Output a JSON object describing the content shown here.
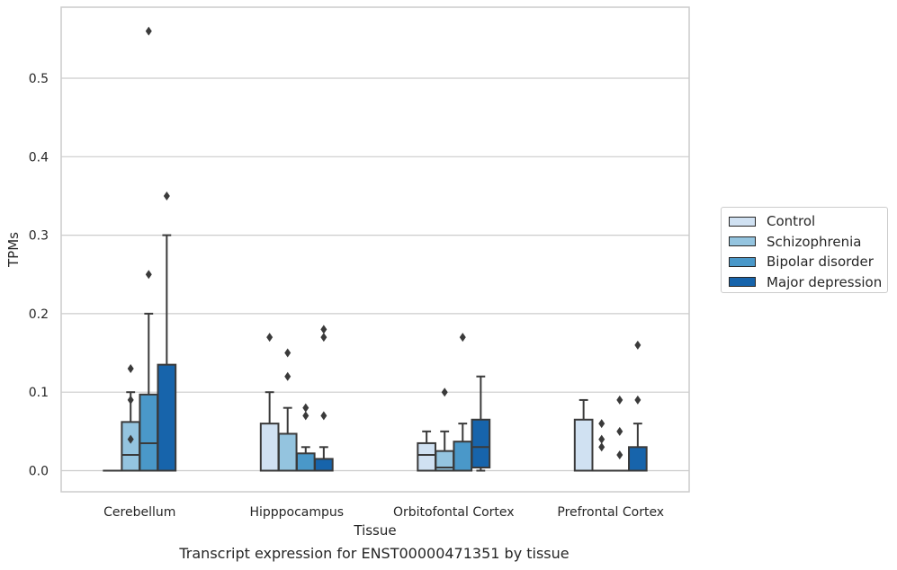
{
  "chart_data": {
    "type": "box",
    "title": "",
    "caption": "Transcript expression for ENST00000471351 by tissue",
    "xlabel": "Tissue",
    "ylabel": "TPMs",
    "ylim": [
      -0.028,
      0.59
    ],
    "yticks": [
      0.0,
      0.1,
      0.2,
      0.3,
      0.4,
      0.5
    ],
    "ytick_labels": [
      "0.0",
      "0.1",
      "0.2",
      "0.3",
      "0.4",
      "0.5"
    ],
    "grid": "horizontal",
    "legend_position": "right",
    "categories": [
      "Cerebellum",
      "Hipppocampus",
      "Orbitofontal Cortex",
      "Prefrontal Cortex"
    ],
    "series": [
      {
        "name": "Control",
        "color": "#d0e1f2",
        "boxes": [
          {
            "q1": 0.0,
            "median": 0.0,
            "q3": 0.0,
            "whislo": 0.0,
            "whishi": 0.0,
            "fliers": []
          },
          {
            "q1": 0.0,
            "median": 0.0,
            "q3": 0.06,
            "whislo": 0.0,
            "whishi": 0.1,
            "fliers": [
              0.17
            ]
          },
          {
            "q1": 0.0,
            "median": 0.02,
            "q3": 0.035,
            "whislo": 0.0,
            "whishi": 0.05,
            "fliers": []
          },
          {
            "q1": 0.0,
            "median": 0.0,
            "q3": 0.065,
            "whislo": 0.0,
            "whishi": 0.09,
            "fliers": []
          }
        ]
      },
      {
        "name": "Schizophrenia",
        "color": "#94c4df",
        "boxes": [
          {
            "q1": 0.0,
            "median": 0.02,
            "q3": 0.062,
            "whislo": 0.0,
            "whishi": 0.1,
            "fliers": [
              0.13,
              0.09,
              0.04
            ]
          },
          {
            "q1": 0.0,
            "median": 0.0,
            "q3": 0.047,
            "whislo": 0.0,
            "whishi": 0.08,
            "fliers": [
              0.15,
              0.12
            ]
          },
          {
            "q1": 0.0,
            "median": 0.004,
            "q3": 0.025,
            "whislo": 0.0,
            "whishi": 0.05,
            "fliers": [
              0.1
            ]
          },
          {
            "q1": 0.0,
            "median": 0.0,
            "q3": 0.0,
            "whislo": 0.0,
            "whishi": 0.0,
            "fliers": [
              0.06,
              0.04,
              0.03
            ]
          }
        ]
      },
      {
        "name": "Bipolar disorder",
        "color": "#4a98c9",
        "boxes": [
          {
            "q1": 0.0,
            "median": 0.035,
            "q3": 0.097,
            "whislo": 0.0,
            "whishi": 0.2,
            "fliers": [
              0.25,
              0.56
            ]
          },
          {
            "q1": 0.0,
            "median": 0.0,
            "q3": 0.022,
            "whislo": 0.0,
            "whishi": 0.03,
            "fliers": [
              0.08,
              0.07
            ]
          },
          {
            "q1": 0.0,
            "median": 0.0,
            "q3": 0.037,
            "whislo": 0.0,
            "whishi": 0.06,
            "fliers": [
              0.17
            ]
          },
          {
            "q1": 0.0,
            "median": 0.0,
            "q3": 0.0,
            "whislo": 0.0,
            "whishi": 0.0,
            "fliers": [
              0.09,
              0.05,
              0.02
            ]
          }
        ]
      },
      {
        "name": "Major depression",
        "color": "#1764ab",
        "boxes": [
          {
            "q1": 0.0,
            "median": 0.0,
            "q3": 0.135,
            "whislo": 0.0,
            "whishi": 0.3,
            "fliers": [
              0.35
            ]
          },
          {
            "q1": 0.0,
            "median": 0.0,
            "q3": 0.015,
            "whislo": 0.0,
            "whishi": 0.03,
            "fliers": [
              0.18,
              0.17,
              0.07
            ]
          },
          {
            "q1": 0.004,
            "median": 0.03,
            "q3": 0.065,
            "whislo": 0.0,
            "whishi": 0.12,
            "fliers": []
          },
          {
            "q1": 0.0,
            "median": 0.0,
            "q3": 0.03,
            "whislo": 0.0,
            "whishi": 0.06,
            "fliers": [
              0.16,
              0.09
            ]
          }
        ]
      }
    ]
  }
}
